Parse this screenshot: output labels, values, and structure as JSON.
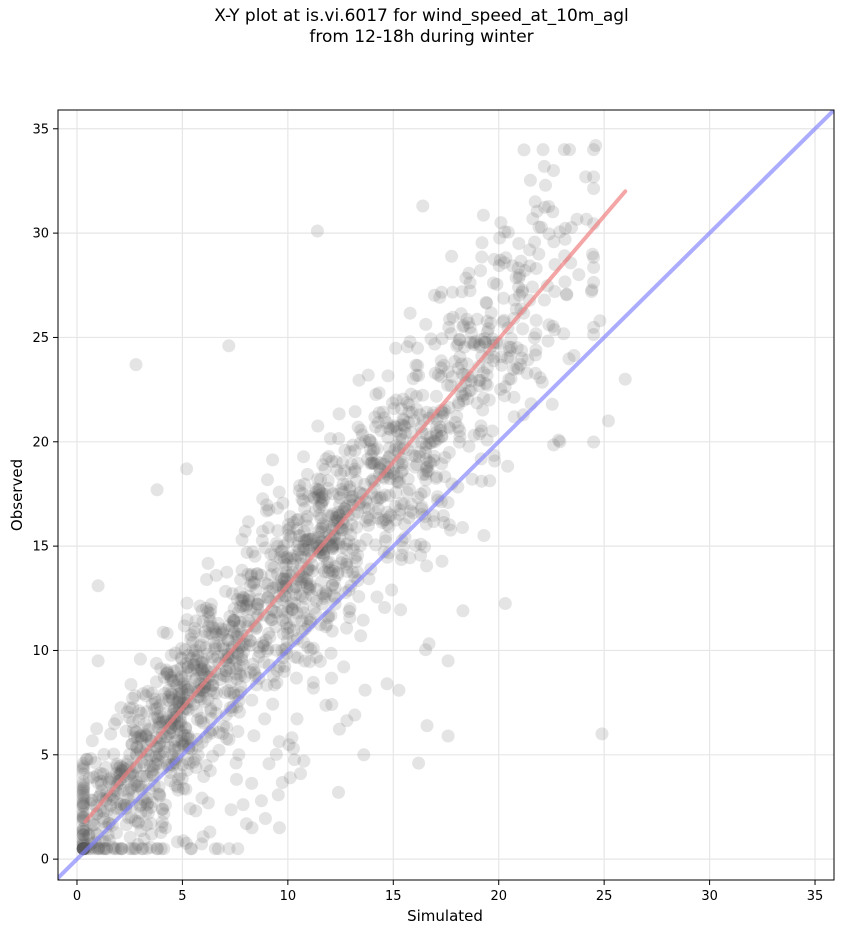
{
  "chart_data": {
    "type": "scatter",
    "title_line1": "X-Y plot at is.vi.6017 for wind_speed_at_10m_agl",
    "title_line2": "from 12-18h during winter",
    "xlabel": "Simulated",
    "ylabel": "Observed",
    "xlim": [
      -0.9,
      35.9
    ],
    "ylim": [
      -1,
      35.9
    ],
    "xticks": [
      0,
      5,
      10,
      15,
      20,
      25,
      30,
      35
    ],
    "yticks": [
      0,
      5,
      10,
      15,
      20,
      25,
      30,
      35
    ],
    "grid": true,
    "point_color": "#555555",
    "point_opacity": 0.16,
    "trend_line": {
      "color": "#f08080",
      "x": [
        0.4,
        26.0
      ],
      "y": [
        1.8,
        32.0
      ]
    },
    "identity_line": {
      "color": "#7f7fff",
      "x": [
        -0.9,
        35.9
      ],
      "y": [
        -0.9,
        35.9
      ]
    },
    "outliers": [
      [
        2.8,
        23.7
      ],
      [
        7.2,
        24.6
      ],
      [
        11.4,
        30.1
      ],
      [
        16.4,
        31.3
      ],
      [
        22.6,
        33.0
      ],
      [
        24.6,
        34.2
      ],
      [
        26.0,
        23.0
      ],
      [
        25.2,
        21.0
      ],
      [
        22.9,
        20.0
      ],
      [
        24.9,
        6.0
      ],
      [
        17.6,
        5.9
      ],
      [
        16.2,
        4.6
      ],
      [
        12.4,
        3.2
      ],
      [
        1.0,
        13.1
      ],
      [
        3.8,
        17.7
      ],
      [
        5.2,
        18.7
      ],
      [
        9.6,
        1.5
      ],
      [
        8.3,
        1.5
      ],
      [
        6.3,
        1.3
      ],
      [
        2.9,
        0.7
      ],
      [
        17.6,
        9.5
      ],
      [
        16.6,
        6.4
      ],
      [
        13.6,
        5.0
      ],
      [
        18.3,
        11.9
      ],
      [
        24.4,
        27.2
      ],
      [
        24.8,
        25.8
      ],
      [
        21.9,
        29.0
      ],
      [
        1.0,
        9.5
      ],
      [
        14.7,
        8.4
      ],
      [
        10.6,
        4.1
      ]
    ],
    "n_cluster_points": 1750
  }
}
